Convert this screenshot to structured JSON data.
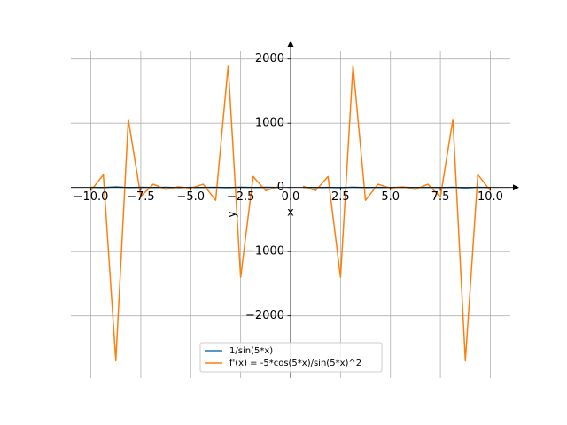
{
  "chart_data": {
    "type": "line",
    "x": [
      -10,
      -9.375,
      -8.75,
      -8.125,
      -7.5,
      -6.875,
      -6.25,
      -5.625,
      -5,
      -4.375,
      -3.75,
      -3.125,
      -2.5,
      -1.875,
      -1.25,
      -0.625,
      0,
      0.625,
      1.25,
      1.875,
      2.5,
      3.125,
      3.75,
      4.375,
      5,
      5.625,
      6.25,
      6.875,
      7.5,
      8.125,
      8.75,
      9.375,
      10
    ],
    "series": [
      {
        "name": "1/sin(5*x)",
        "color": "#1f77b4",
        "values": [
          2,
          -3,
          10,
          -2,
          2,
          -1,
          3,
          -2,
          1,
          -1,
          2,
          -5,
          5,
          -1,
          2,
          -1,
          null,
          1,
          -2,
          1,
          -5,
          5,
          -2,
          1,
          -1,
          2,
          -3,
          1,
          -2,
          2,
          -10,
          3,
          -2
        ]
      },
      {
        "name": "f'(x) = -5*cos(5*x)/sin(5*x)^2",
        "color": "#ff7f0e",
        "values": [
          -50,
          200,
          -2700,
          1060,
          -140,
          50,
          -30,
          10,
          -10,
          50,
          -200,
          1900,
          -1400,
          170,
          -50,
          10,
          null,
          20,
          -50,
          170,
          -1400,
          1900,
          -200,
          50,
          -10,
          10,
          -30,
          50,
          -150,
          1060,
          -2700,
          200,
          -50
        ]
      }
    ],
    "xlabel": "x",
    "ylabel": "y",
    "xlim": [
      -11,
      11
    ],
    "ylim": [
      -2970,
      2120
    ],
    "xticks": [
      {
        "value": -10,
        "label": "−10.0"
      },
      {
        "value": -7.5,
        "label": "−7.5"
      },
      {
        "value": -5,
        "label": "−5.0"
      },
      {
        "value": -2.5,
        "label": "−2.5"
      },
      {
        "value": 0,
        "label": "0.0"
      },
      {
        "value": 2.5,
        "label": "2.5"
      },
      {
        "value": 5,
        "label": "5.0"
      },
      {
        "value": 7.5,
        "label": "7.5"
      },
      {
        "value": 10,
        "label": "10.0"
      }
    ],
    "yticks": [
      {
        "value": -2000,
        "label": "−2000"
      },
      {
        "value": -1000,
        "label": "−1000"
      },
      0,
      1000,
      2000
    ],
    "grid": true,
    "legend": "lower center"
  }
}
